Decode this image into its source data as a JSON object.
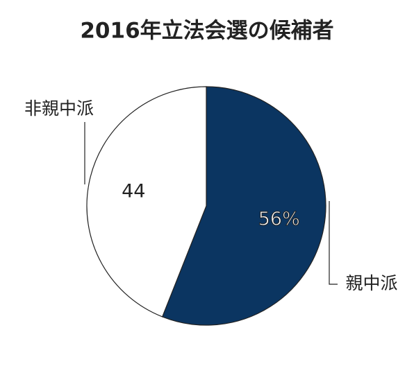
{
  "chart_data": {
    "type": "pie",
    "title": "2016年立法会選の候補者",
    "categories": [
      "親中派",
      "非親中派"
    ],
    "values": [
      56,
      44
    ],
    "value_labels": [
      "56%",
      "44"
    ],
    "colors": [
      "#0b3561",
      "#ffffff"
    ]
  }
}
